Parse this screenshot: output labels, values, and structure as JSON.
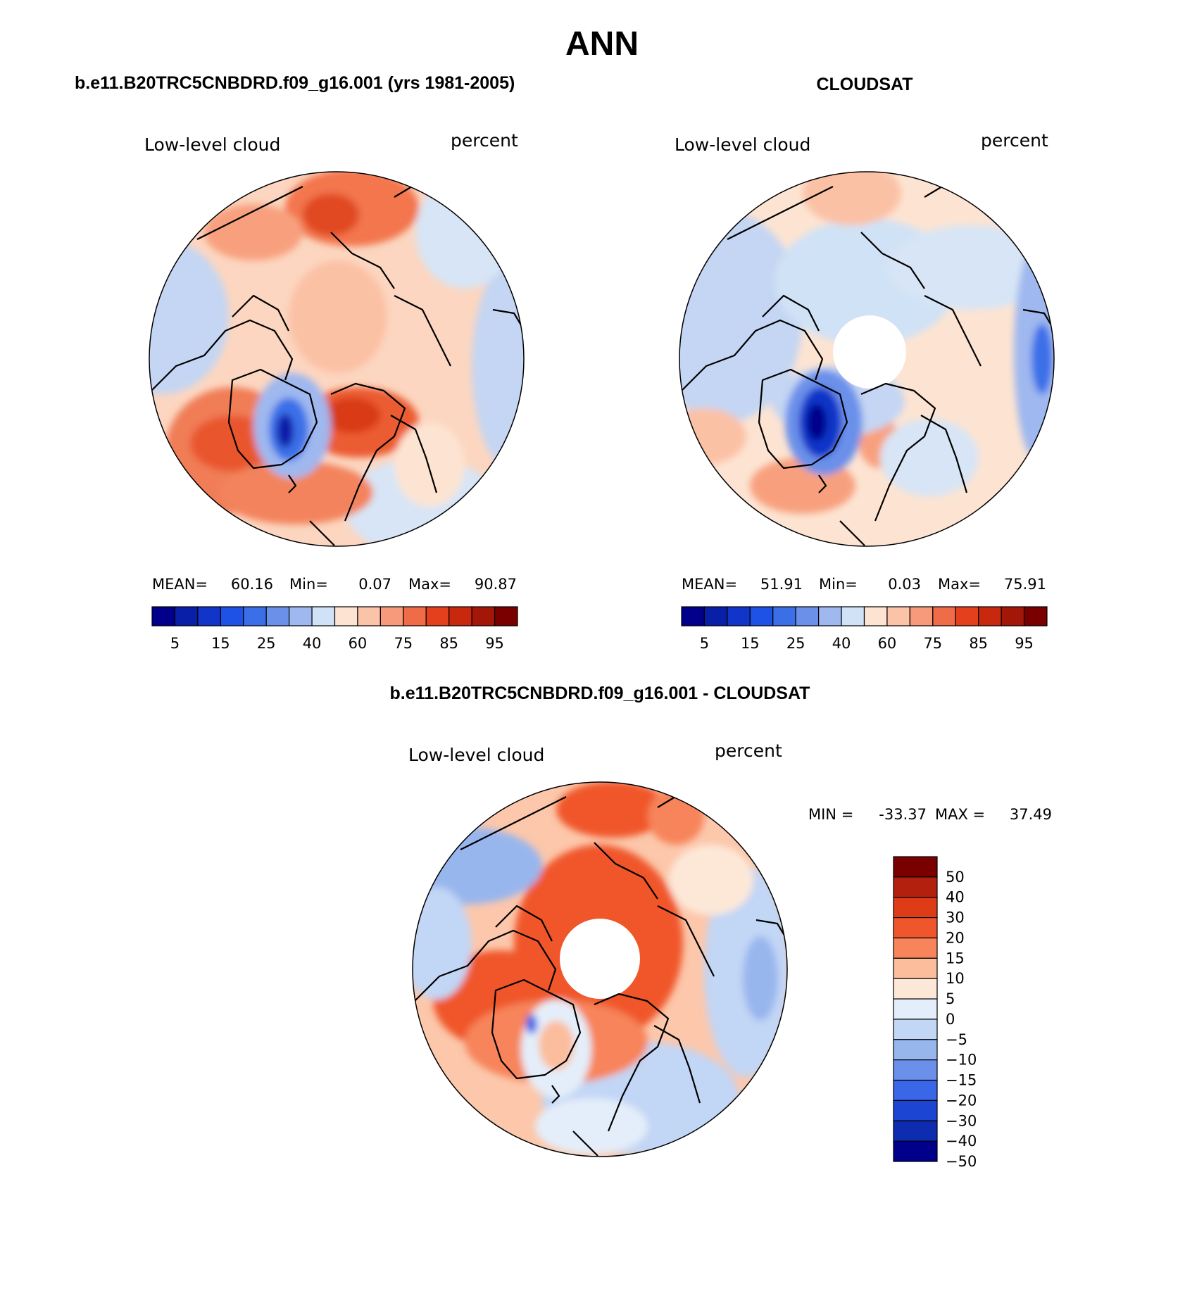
{
  "figure": {
    "title": "ANN",
    "left_header": "b.e11.B20TRC5CNBDRD.f09_g16.001 (yrs 1981-2005)",
    "right_header": "CLOUDSAT",
    "diff_header": "b.e11.B20TRC5CNBDRD.f09_g16.001 - CLOUDSAT"
  },
  "chart_data": [
    {
      "type": "polar-contour-map",
      "panel": "model",
      "variable_label": "Low-level cloud",
      "units_label": "percent",
      "stats": {
        "mean_label": "MEAN=",
        "mean": "60.16",
        "min_label": "Min=",
        "min": "0.07",
        "max_label": "Max=",
        "max": "90.87"
      },
      "colorbar": {
        "levels": [
          5,
          10,
          15,
          20,
          25,
          30,
          40,
          50,
          60,
          70,
          75,
          80,
          85,
          90,
          95
        ],
        "tick_labels": [
          "5",
          "15",
          "25",
          "40",
          "60",
          "75",
          "85",
          "95"
        ],
        "colors": [
          "#00008b",
          "#0a1fa8",
          "#1035c8",
          "#1e52e6",
          "#3a6fe8",
          "#6a90ea",
          "#9fb8ef",
          "#d0e2f6",
          "#fde4d2",
          "#fbc3a8",
          "#f7997b",
          "#f06b47",
          "#e5401e",
          "#c8280e",
          "#a31708",
          "#7a0000"
        ]
      }
    },
    {
      "type": "polar-contour-map",
      "panel": "obs",
      "variable_label": "Low-level cloud",
      "units_label": "percent",
      "stats": {
        "mean_label": "MEAN=",
        "mean": "51.91",
        "min_label": "Min=",
        "min": "0.03",
        "max_label": "Max=",
        "max": "75.91"
      },
      "colorbar": {
        "levels": [
          5,
          10,
          15,
          20,
          25,
          30,
          40,
          50,
          60,
          70,
          75,
          80,
          85,
          90,
          95
        ],
        "tick_labels": [
          "5",
          "15",
          "25",
          "40",
          "60",
          "75",
          "85",
          "95"
        ],
        "colors": [
          "#00008b",
          "#0a1fa8",
          "#1035c8",
          "#1e52e6",
          "#3a6fe8",
          "#6a90ea",
          "#9fb8ef",
          "#d0e2f6",
          "#fde4d2",
          "#fbc3a8",
          "#f7997b",
          "#f06b47",
          "#e5401e",
          "#c8280e",
          "#a31708",
          "#7a0000"
        ]
      }
    },
    {
      "type": "polar-contour-map",
      "panel": "difference",
      "variable_label": "Low-level cloud",
      "units_label": "percent",
      "stats": {
        "min_label": "MIN =",
        "min": "-33.37",
        "max_label": "MAX =",
        "max": "37.49"
      },
      "colorbar": {
        "levels": [
          50,
          40,
          30,
          20,
          15,
          10,
          5,
          0,
          -5,
          -10,
          -15,
          -20,
          -30,
          -40,
          -50
        ],
        "tick_labels": [
          "50",
          "40",
          "30",
          "20",
          "15",
          "10",
          "5",
          "0",
          "−5",
          "−10",
          "−15",
          "−20",
          "−30",
          "−40",
          "−50"
        ],
        "colors": [
          "#7a0000",
          "#b3200e",
          "#dd3c17",
          "#f0562c",
          "#f7845a",
          "#fbbd9c",
          "#fde8d8",
          "#e4eefa",
          "#c2d6f5",
          "#98b6ee",
          "#6a90ea",
          "#3a66e8",
          "#1c45d4",
          "#0d2cb0",
          "#00008b"
        ]
      }
    }
  ]
}
